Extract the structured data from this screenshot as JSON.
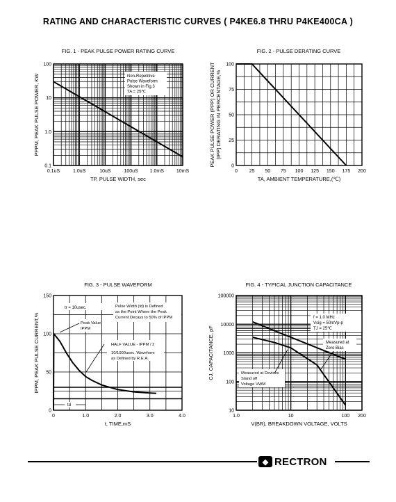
{
  "page_title": "RATING AND CHARACTERISTIC CURVES ( P4KE6.8 THRU P4KE400CA )",
  "brand": {
    "name": "RECTRON"
  },
  "chart_data": [
    {
      "id": "fig1",
      "type": "line",
      "title": "FIG. 1 - PEAK PULSE POWER RATING CURVE",
      "xlabel": "TP, PULSE WIDTH, sec",
      "ylabel": "PPPM, PEAK PULSE POWER, KW",
      "x_scale": "log",
      "y_scale": "log",
      "xlim": [
        1e-07,
        0.01
      ],
      "ylim": [
        0.1,
        100
      ],
      "xticks": [
        1e-07,
        1e-06,
        1e-05,
        0.0001,
        0.001,
        0.01
      ],
      "xtick_labels": [
        "0.1uS",
        "1.0uS",
        "10uS",
        "100uS",
        "1.0mS",
        "10mS"
      ],
      "yticks": [
        0.1,
        1,
        10,
        100
      ],
      "ytick_labels": [
        "0.1",
        "1.0",
        "10",
        "100"
      ],
      "grid": true,
      "annotations": [
        "Non-Repetitive",
        "Pulse Waveform",
        "Shown in Fig.3",
        "TA = 25℃"
      ],
      "series": [
        {
          "x": [
            1e-07,
            0.01
          ],
          "y": [
            30,
            0.18
          ]
        }
      ]
    },
    {
      "id": "fig2",
      "type": "line",
      "title": "FIG. 2 - PULSE DERATING CURVE",
      "xlabel": "TA, AMBIENT TEMPERATURE,(℃)",
      "ylabel": "PEAK PULSE POWER (PPP) OR CURRENT (IPP) DERATING IN PERCENTAGE,%",
      "ylabel_lines": [
        "PEAK PULSE POWER (PPP) OR CURRENT",
        "(IPP) DERATING IN PERCENTAGE,%"
      ],
      "xlim": [
        0,
        200
      ],
      "ylim": [
        0,
        100
      ],
      "xticks": [
        0,
        25,
        50,
        75,
        100,
        125,
        150,
        175,
        200
      ],
      "xtick_labels": [
        "0",
        "25",
        "50",
        "75",
        "100",
        "125",
        "150",
        "175",
        "200"
      ],
      "yticks": [
        0,
        25,
        50,
        75,
        100
      ],
      "ytick_labels": [
        "0",
        "25",
        "50",
        "75",
        "100"
      ],
      "grid": true,
      "series": [
        {
          "x": [
            0,
            25,
            175
          ],
          "y": [
            100,
            100,
            0
          ]
        }
      ]
    },
    {
      "id": "fig3",
      "type": "line",
      "title": "FIG. 3 - PULSE WAVEFORM",
      "xlabel": "t, TIME,mS",
      "ylabel": "IPPM, PEAK PULSE CURRENT,%",
      "xlim": [
        0,
        4
      ],
      "ylim": [
        0,
        150
      ],
      "xticks": [
        0,
        1,
        2,
        3,
        4
      ],
      "xtick_labels": [
        "0",
        "1.0",
        "2.0",
        "3.0",
        "4.0"
      ],
      "yticks": [
        0,
        50,
        100,
        150
      ],
      "ytick_labels": [
        "0",
        "50",
        "100",
        "150"
      ],
      "grid": true,
      "annotations": {
        "tr": "tr = 10usec.",
        "pulse_width": [
          "Pulse Width (td) is Defined",
          "as the Point Where the Peak",
          "Current Decays to 50% of IPPM"
        ],
        "peak_value": [
          "Peak Value",
          "IPPM"
        ],
        "half_value": "HALF VALUE - IPPM / 2",
        "waveform": [
          "10/1000usec. Waveform",
          "as Defined by R.E.A."
        ],
        "td": "td"
      },
      "series": [
        {
          "x": [
            0,
            0.01,
            0.2,
            0.4,
            0.6,
            0.8,
            1.0,
            1.2,
            1.5,
            2.0,
            2.5,
            3.0,
            3.2
          ],
          "y": [
            0,
            100,
            90,
            75,
            62,
            52,
            44,
            39,
            33,
            27,
            24,
            22.5,
            22
          ]
        }
      ]
    },
    {
      "id": "fig4",
      "type": "line",
      "title": "FIG. 4 - TYPICAL JUNCTION CAPACITANCE",
      "xlabel": "V(BR), BREAKDOWN VOLTAGE, VOLTS",
      "ylabel": "CJ, CAPACITANCE, pF",
      "x_scale": "log",
      "y_scale": "log",
      "xlim": [
        1,
        200
      ],
      "ylim": [
        10,
        100000
      ],
      "xticks": [
        1,
        10,
        100,
        200
      ],
      "xtick_labels": [
        "1.0",
        "10",
        "100",
        "200"
      ],
      "yticks": [
        10,
        100,
        1000,
        10000,
        100000
      ],
      "ytick_labels": [
        "10",
        "100",
        "1000",
        "10000",
        "100000"
      ],
      "grid": true,
      "annotations": {
        "conditions": [
          "f = 1.0 MHz",
          "Vsig = 50mVp-p",
          "TJ = 25℃"
        ],
        "zero_bias": [
          "Measured at",
          "Zero Bias"
        ],
        "standoff": [
          "Measured at Devices",
          "Stand off",
          "Voltage VWM"
        ]
      },
      "series": [
        {
          "x": [
            2,
            100
          ],
          "y": [
            12000,
            600
          ]
        },
        {
          "x": [
            2,
            5,
            10,
            30,
            100
          ],
          "y": [
            3500,
            2300,
            1500,
            380,
            15
          ]
        }
      ]
    }
  ]
}
